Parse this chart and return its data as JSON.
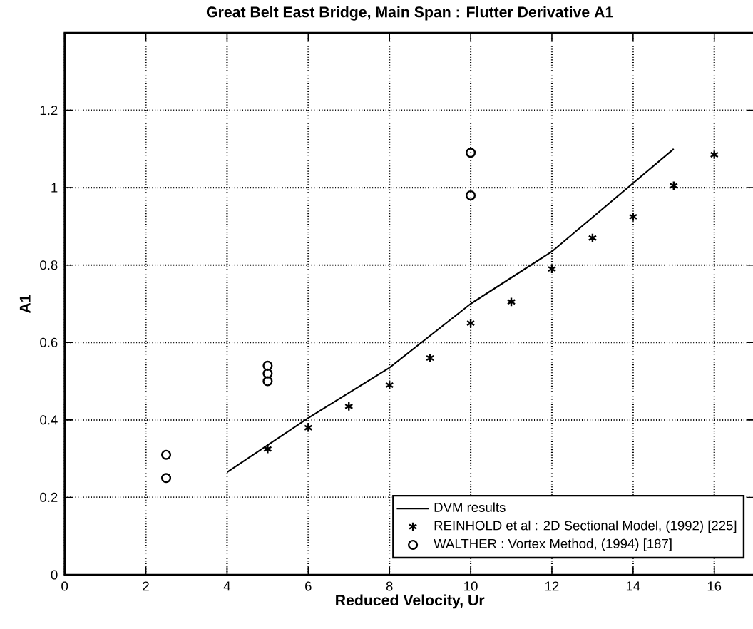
{
  "chart_data": {
    "type": "line",
    "title": "Great Belt East Bridge, Main Span : Flutter Derivative A1",
    "xlabel": "Reduced Velocity, Ur",
    "ylabel": "A1",
    "xlim": [
      0,
      17
    ],
    "xticks": [
      0,
      2,
      4,
      6,
      8,
      10,
      12,
      14,
      16
    ],
    "ylim": [
      0,
      1.4
    ],
    "yticks": [
      0,
      0.2,
      0.4,
      0.6,
      0.8,
      1,
      1.2
    ],
    "grid": true,
    "legend": "bottom right",
    "series": [
      {
        "name": "DVM results",
        "color": "#000000",
        "marker": "none",
        "line_style": "solid",
        "x": [
          4,
          6,
          8,
          10,
          12,
          15
        ],
        "values": [
          0.265,
          0.405,
          0.535,
          0.7,
          0.835,
          1.1
        ]
      },
      {
        "name": "REINHOLD et al : 2D Sectional Model, (1992) [225]",
        "type": "scatter",
        "color": "#000000",
        "marker": "cross",
        "x": [
          5,
          6,
          7,
          8,
          9,
          10,
          11,
          12,
          13,
          14,
          15,
          16
        ],
        "values": [
          0.325,
          0.38,
          0.435,
          0.49,
          0.56,
          0.65,
          0.705,
          0.79,
          0.87,
          0.925,
          1.005,
          1.085
        ]
      },
      {
        "name": "WALTHER : Vortex Method, (1994) [187]",
        "type": "scatter",
        "color": "#000000",
        "marker": "circle",
        "x": [
          2.5,
          2.5,
          5,
          5,
          5,
          10,
          10
        ],
        "values": [
          0.31,
          0.25,
          0.54,
          0.52,
          0.5,
          1.09,
          0.98
        ]
      }
    ]
  }
}
